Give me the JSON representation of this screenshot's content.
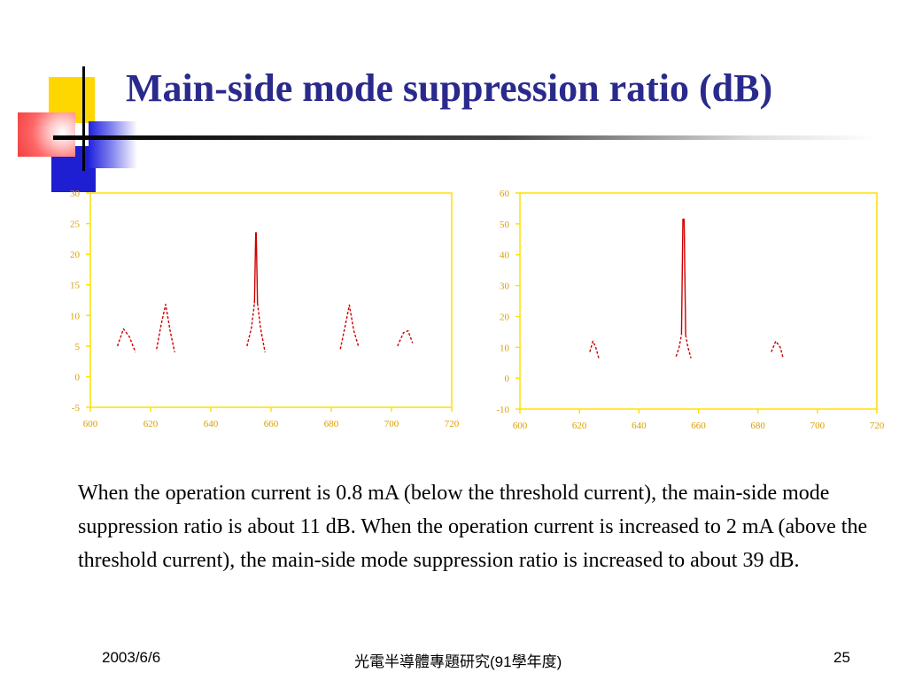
{
  "slide": {
    "title": "Main-side mode suppression ratio (dB)",
    "body": "When the operation current is 0.8 mA (below the threshold current), the main-side mode suppression ratio is about 11 dB. When the operation current is increased to 2 mA (above the threshold current), the main-side mode suppression ratio is increased to about 39 dB.",
    "footer_date": "2003/6/6",
    "footer_center": "光電半導體專題研究(91學年度)",
    "page_number": "25"
  },
  "colors": {
    "title": "#2a2a8c",
    "axis": "#ffe100",
    "tick_text": "#d9a000",
    "trace": "#cc0000"
  },
  "chart_data": [
    {
      "type": "line",
      "xlim": [
        600,
        720
      ],
      "ylim": [
        -5,
        30
      ],
      "xticks": [
        600,
        620,
        640,
        660,
        680,
        700,
        720
      ],
      "yticks": [
        -5,
        0,
        5,
        10,
        15,
        20,
        25,
        30
      ],
      "grid": false,
      "series": [
        {
          "style": "dashed",
          "x": [
            609,
            611,
            613,
            614,
            615
          ],
          "y": [
            5,
            7.8,
            6.5,
            5.2,
            4
          ]
        },
        {
          "style": "dashed",
          "x": [
            622,
            623.5,
            625,
            626.5,
            628
          ],
          "y": [
            4.5,
            8.5,
            11.8,
            7.5,
            4
          ]
        },
        {
          "style": "dashed",
          "x": [
            652,
            653.5,
            654.5
          ],
          "y": [
            5,
            8,
            12
          ]
        },
        {
          "style": "solid",
          "x": [
            654.5,
            654.9,
            655.1,
            655.5
          ],
          "y": [
            12,
            23.5,
            23.5,
            12
          ]
        },
        {
          "style": "dashed",
          "x": [
            655.5,
            656.5,
            658
          ],
          "y": [
            12,
            8,
            4
          ]
        },
        {
          "style": "dashed",
          "x": [
            683,
            684.5,
            686,
            687.5,
            689
          ],
          "y": [
            4.5,
            8,
            11.7,
            7.5,
            5
          ]
        },
        {
          "style": "dashed",
          "x": [
            702,
            704,
            705.5,
            707
          ],
          "y": [
            5,
            7.2,
            7.5,
            5.5
          ]
        }
      ]
    },
    {
      "type": "line",
      "xlim": [
        600,
        720
      ],
      "ylim": [
        -10,
        60
      ],
      "xticks": [
        600,
        620,
        640,
        660,
        680,
        700,
        720
      ],
      "yticks": [
        -10,
        0,
        10,
        20,
        30,
        40,
        50,
        60
      ],
      "grid": false,
      "series": [
        {
          "style": "dashed",
          "x": [
            623.5,
            624.5,
            625.5,
            626.5
          ],
          "y": [
            8.5,
            12,
            10,
            6.5
          ]
        },
        {
          "style": "dashed",
          "x": [
            652.5,
            653.5,
            654.3
          ],
          "y": [
            7,
            10,
            14
          ]
        },
        {
          "style": "solid",
          "x": [
            654.3,
            654.8,
            655.2,
            655.7
          ],
          "y": [
            14,
            51.5,
            51.5,
            14
          ]
        },
        {
          "style": "dashed",
          "x": [
            655.7,
            656.5,
            657.5
          ],
          "y": [
            14,
            10,
            6.5
          ]
        },
        {
          "style": "dashed",
          "x": [
            684.5,
            686,
            687.5,
            688.5
          ],
          "y": [
            8.5,
            12,
            10,
            6.5
          ]
        }
      ]
    }
  ]
}
